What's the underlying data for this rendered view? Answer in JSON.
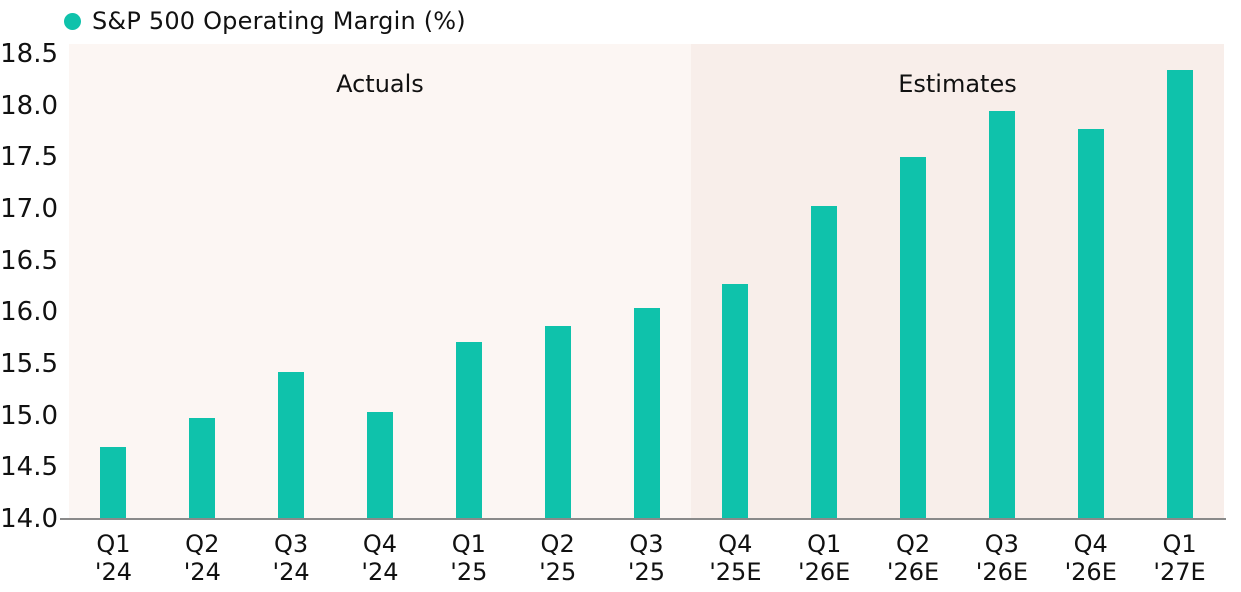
{
  "legend": {
    "label": "S&P 500 Operating Margin (%)"
  },
  "chart_data": {
    "type": "bar",
    "series_name": "S&P 500 Operating Margin (%)",
    "legend_position": "top-left",
    "grid": false,
    "categories": [
      "Q1 '24",
      "Q2 '24",
      "Q3 '24",
      "Q4 '24",
      "Q1 '25",
      "Q2 '25",
      "Q3 '25",
      "Q4 '25E",
      "Q1 '26E",
      "Q2 '26E",
      "Q3 '26E",
      "Q4 '26E",
      "Q1 '27E"
    ],
    "category_lines": [
      [
        "Q1",
        "'24"
      ],
      [
        "Q2",
        "'24"
      ],
      [
        "Q3",
        "'24"
      ],
      [
        "Q4",
        "'24"
      ],
      [
        "Q1",
        "'25"
      ],
      [
        "Q2",
        "'25"
      ],
      [
        "Q3",
        "'25"
      ],
      [
        "Q4",
        "'25E"
      ],
      [
        "Q1",
        "'26E"
      ],
      [
        "Q2",
        "'26E"
      ],
      [
        "Q3",
        "'26E"
      ],
      [
        "Q4",
        "'26E"
      ],
      [
        "Q1",
        "'27E"
      ]
    ],
    "values": [
      14.7,
      14.98,
      15.42,
      15.04,
      15.71,
      15.87,
      16.04,
      16.27,
      17.03,
      17.5,
      17.95,
      17.77,
      18.35
    ],
    "ylim": [
      14.0,
      18.5
    ],
    "ytick_labels": [
      "14.0",
      "14.5",
      "15.0",
      "15.5",
      "16.0",
      "16.5",
      "17.0",
      "17.5",
      "18.0",
      "18.5"
    ],
    "xlabel": "",
    "ylabel": "",
    "regions": [
      {
        "label": "Actuals",
        "category_range": [
          0,
          6
        ],
        "bg_color": "#FCF6F3"
      },
      {
        "label": "Estimates",
        "category_range": [
          7,
          12
        ],
        "bg_color": "#F8EEEA"
      }
    ],
    "colors": {
      "bar": "#0FC2AB",
      "legend_dot": "#0FC2AB",
      "axis_line": "#8A8A8A",
      "text": "#1A1A1A"
    }
  }
}
